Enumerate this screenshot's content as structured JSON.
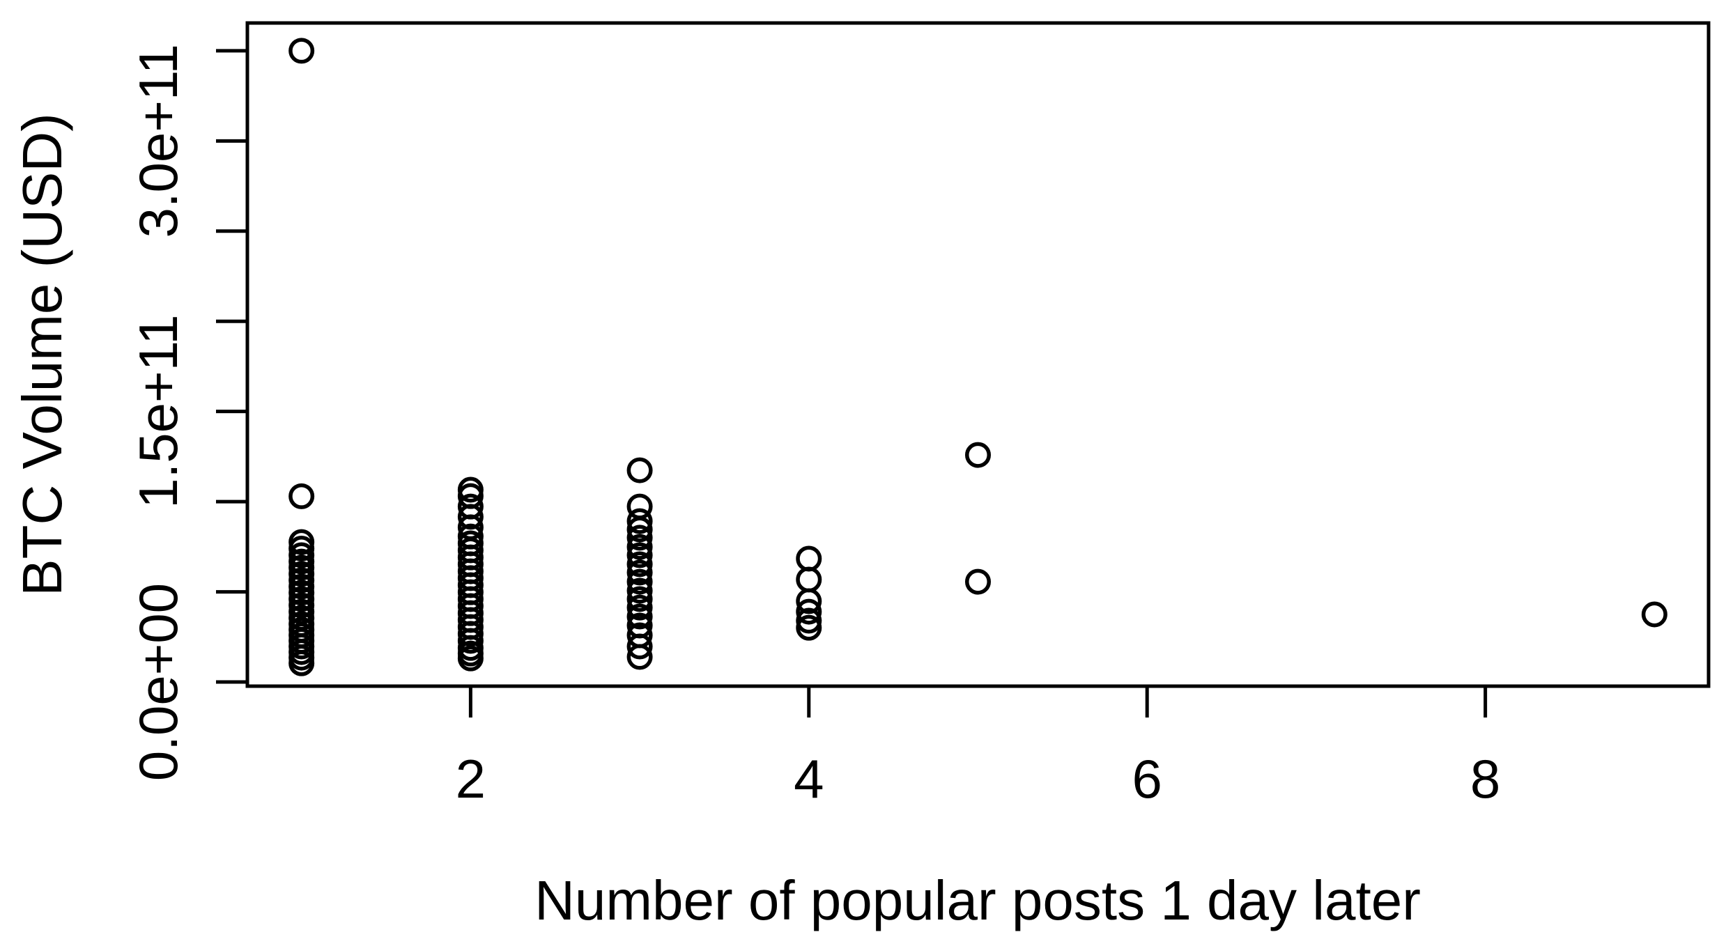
{
  "figure": {
    "background": "#ffffff",
    "foreground": "#000000"
  },
  "chart_data": {
    "type": "scatter",
    "title": "",
    "xlabel": "Number of popular posts 1 day later",
    "ylabel": "BTC Volume (USD)",
    "marker": "open-circle",
    "marker_color": "#000000",
    "grid": false,
    "box": true,
    "xlim": [
      0.68,
      9.32
    ],
    "ylim_e11": [
      -0.023,
      3.654
    ],
    "x_ticks": [
      2,
      4,
      6,
      8
    ],
    "x_tick_labels": [
      "2",
      "4",
      "6",
      "8"
    ],
    "y_ticks_e11": [
      0,
      0.5,
      1.0,
      1.5,
      2.0,
      2.5,
      3.0,
      3.5
    ],
    "y_labeled_ticks": [
      {
        "value_e11": 0,
        "label": "0.0e+00"
      },
      {
        "value_e11": 1.5,
        "label": "1.5e+11"
      },
      {
        "value_e11": 3.0,
        "label": "3.0e+11"
      }
    ],
    "y_unit": "1e11 USD",
    "points": [
      {
        "x": 1,
        "y_e11": [
          3.5,
          1.03,
          0.776,
          0.74,
          0.703,
          0.668,
          0.634,
          0.599,
          0.564,
          0.529,
          0.495,
          0.46,
          0.425,
          0.39,
          0.356,
          0.321,
          0.29,
          0.259,
          0.228,
          0.197,
          0.166,
          0.135,
          0.104
        ]
      },
      {
        "x": 2,
        "y_e11": [
          1.066,
          1.031,
          0.973,
          0.916,
          0.858,
          0.807,
          0.769,
          0.73,
          0.691,
          0.653,
          0.614,
          0.576,
          0.537,
          0.498,
          0.46,
          0.421,
          0.382,
          0.344,
          0.305,
          0.267,
          0.228,
          0.189,
          0.158,
          0.131
        ]
      },
      {
        "x": 3,
        "y_e11": [
          1.174,
          0.973,
          0.892,
          0.846,
          0.8,
          0.749,
          0.703,
          0.653,
          0.607,
          0.556,
          0.506,
          0.46,
          0.413,
          0.363,
          0.313,
          0.259,
          0.197,
          0.139
        ]
      },
      {
        "x": 4,
        "y_e11": [
          0.684,
          0.568,
          0.448,
          0.39,
          0.34,
          0.301
        ]
      },
      {
        "x": 5,
        "y_e11": [
          1.259,
          0.556
        ]
      },
      {
        "x": 9,
        "y_e11": [
          0.375
        ]
      }
    ]
  }
}
